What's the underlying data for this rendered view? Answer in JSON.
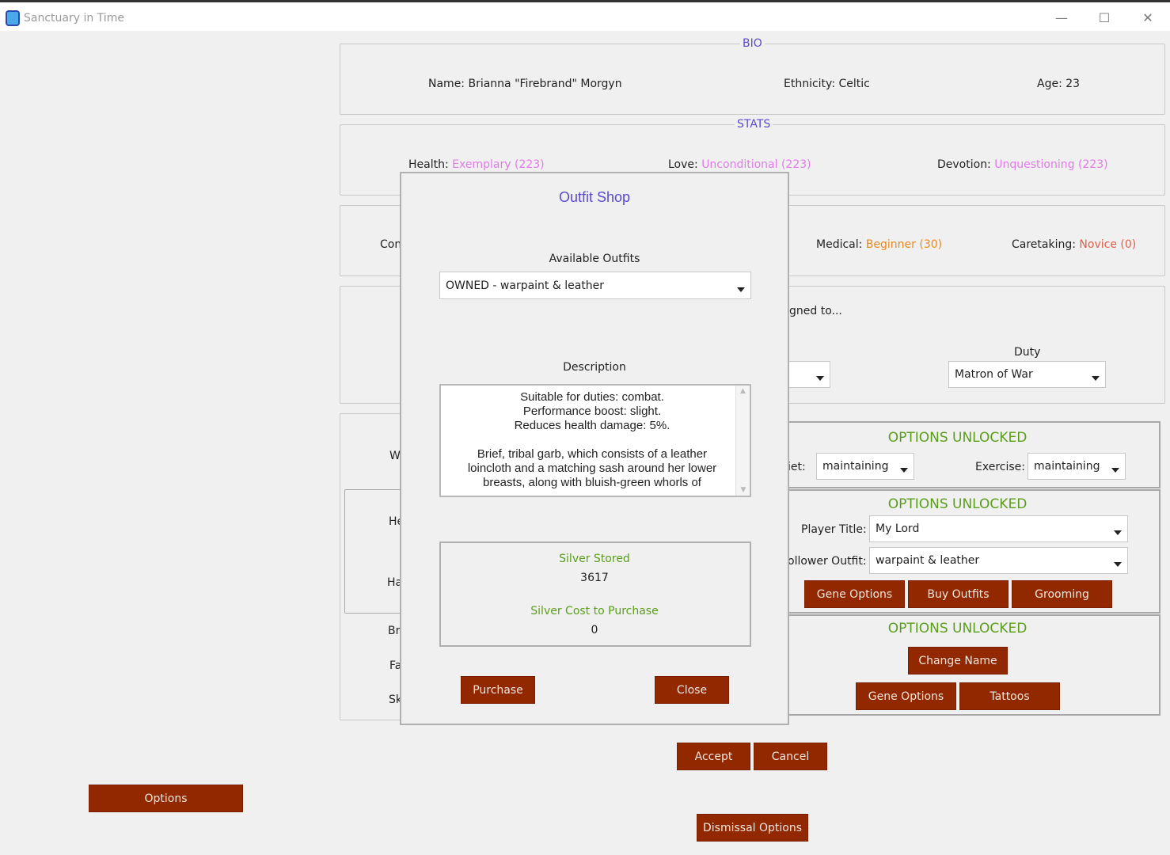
{
  "window": {
    "title": "Sanctuary in Time",
    "minimize": "—",
    "maximize": "☐",
    "close": "✕"
  },
  "bio": {
    "label": "BIO",
    "name": "Name: Brianna \"Firebrand\" Morgyn",
    "ethnicity": "Ethnicity: Celtic",
    "age": "Age: 23"
  },
  "stats": {
    "label": "STATS",
    "health_label": "Health:",
    "health_value": "Exemplary (223)",
    "love_label": "Love:",
    "love_value": "Unconditional (223)",
    "devotion_label": "Devotion:",
    "devotion_value": "Unquestioning (223)"
  },
  "skills": {
    "partial": "Con",
    "medical_label": "Medical:",
    "medical_value": "Beginner (30)",
    "caretaking_label": "Caretaking:",
    "caretaking_value": "Novice (0)"
  },
  "assignment": {
    "assigned_partial": "gned to...",
    "duty_label": "Duty",
    "duty_value": "Matron of War"
  },
  "left_partials": [
    "W",
    "He",
    "Ha",
    "Br",
    "Fa",
    "Sk"
  ],
  "panel1": {
    "heading": "OPTIONS UNLOCKED",
    "diet_label": "iet:",
    "diet_value": "maintaining",
    "exercise_label": "Exercise:",
    "exercise_value": "maintaining"
  },
  "panel2": {
    "heading": "OPTIONS UNLOCKED",
    "title_label": "Player Title:",
    "title_value": "My Lord",
    "outfit_label": "ollower Outfit:",
    "outfit_value": "warpaint & leather",
    "buttons": [
      "Gene Options",
      "Buy Outfits",
      "Grooming"
    ]
  },
  "panel3": {
    "heading": "OPTIONS UNLOCKED",
    "buttons": [
      "Change Name",
      "Gene Options",
      "Tattoos"
    ]
  },
  "footer": {
    "accept": "Accept",
    "cancel": "Cancel",
    "options": "Options",
    "dismissal": "Dismissal Options"
  },
  "modal": {
    "title": "Outfit Shop",
    "available_label": "Available Outfits",
    "selected_outfit": "OWNED - warpaint & leather",
    "description_label": "Description",
    "description": "Suitable for duties: combat.\nPerformance boost: slight.\nReduces health damage: 5%.\n\nBrief, tribal garb, which consists of a leather\nloincloth and a matching sash around her lower\nbreasts, along with bluish-green whorls of",
    "silver_stored_label": "Silver Stored",
    "silver_stored": "3617",
    "silver_cost_label": "Silver Cost to Purchase",
    "silver_cost": "0",
    "purchase": "Purchase",
    "close": "Close"
  },
  "colors": {
    "button": "#922800",
    "accent_title": "#5a4ad0",
    "stat_value": "#e07be8",
    "skill_value": "#e8891e",
    "unlocked": "#5a9e1a"
  }
}
